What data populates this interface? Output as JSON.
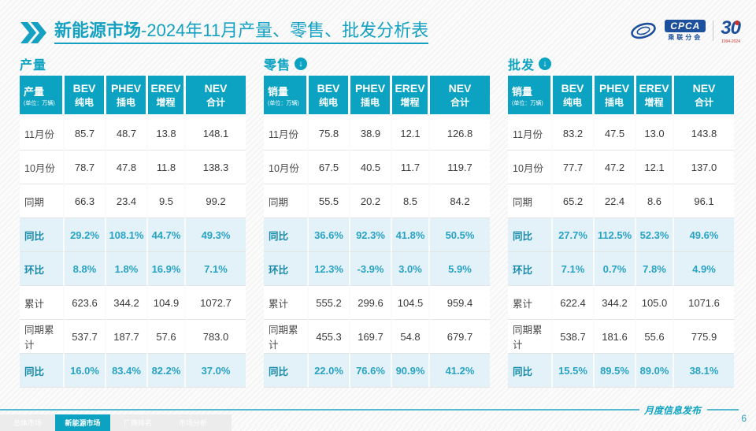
{
  "page_title": {
    "bold": "新能源市场",
    "rest": "-2024年11月产量、零售、批发分析表"
  },
  "header_logos": {
    "cpca_acronym": "CPCA",
    "cpca_name": "乘联分会",
    "anniversary_number": "30",
    "anniversary_years": "1994-2024"
  },
  "icons": {
    "down_arrow": "↓"
  },
  "watermark_text": "CPCA",
  "colors": {
    "accent": "#0CA2C1",
    "highlight_row_bg": "#E3F1F8",
    "logo_navy": "#1C4F9C",
    "logo_red": "#C9342C",
    "footer_line": "#56B8D1"
  },
  "chart_data": [
    {
      "type": "table",
      "section_label": "产量",
      "has_down_arrow": false,
      "corner_label": "产量",
      "corner_unit": "(单位：万辆)",
      "columns": [
        {
          "l1": "BEV",
          "l2": "纯电"
        },
        {
          "l1": "PHEV",
          "l2": "插电"
        },
        {
          "l1": "EREV",
          "l2": "增程"
        },
        {
          "l1": "NEV",
          "l2": "合计"
        }
      ],
      "rows": [
        {
          "label": "11月份",
          "values": [
            "85.7",
            "48.7",
            "13.8",
            "148.1"
          ],
          "highlight": false
        },
        {
          "label": "10月份",
          "values": [
            "78.7",
            "47.8",
            "11.8",
            "138.3"
          ],
          "highlight": false
        },
        {
          "label": "同期",
          "values": [
            "66.3",
            "23.4",
            "9.5",
            "99.2"
          ],
          "highlight": false
        },
        {
          "label": "同比",
          "values": [
            "29.2%",
            "108.1%",
            "44.7%",
            "49.3%"
          ],
          "highlight": true
        },
        {
          "label": "环比",
          "values": [
            "8.8%",
            "1.8%",
            "16.9%",
            "7.1%"
          ],
          "highlight": true
        },
        {
          "label": "累计",
          "values": [
            "623.6",
            "344.2",
            "104.9",
            "1072.7"
          ],
          "highlight": false
        },
        {
          "label": "同期累计",
          "values": [
            "537.7",
            "187.7",
            "57.6",
            "783.0"
          ],
          "highlight": false
        },
        {
          "label": "同比",
          "values": [
            "16.0%",
            "83.4%",
            "82.2%",
            "37.0%"
          ],
          "highlight": true
        }
      ]
    },
    {
      "type": "table",
      "section_label": "零售",
      "has_down_arrow": true,
      "corner_label": "销量",
      "corner_unit": "(单位：万辆)",
      "columns": [
        {
          "l1": "BEV",
          "l2": "纯电"
        },
        {
          "l1": "PHEV",
          "l2": "插电"
        },
        {
          "l1": "EREV",
          "l2": "增程"
        },
        {
          "l1": "NEV",
          "l2": "合计"
        }
      ],
      "rows": [
        {
          "label": "11月份",
          "values": [
            "75.8",
            "38.9",
            "12.1",
            "126.8"
          ],
          "highlight": false
        },
        {
          "label": "10月份",
          "values": [
            "67.5",
            "40.5",
            "11.7",
            "119.7"
          ],
          "highlight": false
        },
        {
          "label": "同期",
          "values": [
            "55.5",
            "20.2",
            "8.5",
            "84.2"
          ],
          "highlight": false
        },
        {
          "label": "同比",
          "values": [
            "36.6%",
            "92.3%",
            "41.8%",
            "50.5%"
          ],
          "highlight": true
        },
        {
          "label": "环比",
          "values": [
            "12.3%",
            "-3.9%",
            "3.0%",
            "5.9%"
          ],
          "highlight": true
        },
        {
          "label": "累计",
          "values": [
            "555.2",
            "299.6",
            "104.5",
            "959.4"
          ],
          "highlight": false
        },
        {
          "label": "同期累计",
          "values": [
            "455.3",
            "169.7",
            "54.8",
            "679.7"
          ],
          "highlight": false
        },
        {
          "label": "同比",
          "values": [
            "22.0%",
            "76.6%",
            "90.9%",
            "41.2%"
          ],
          "highlight": true
        }
      ]
    },
    {
      "type": "table",
      "section_label": "批发",
      "has_down_arrow": true,
      "corner_label": "销量",
      "corner_unit": "(单位：万辆)",
      "columns": [
        {
          "l1": "BEV",
          "l2": "纯电"
        },
        {
          "l1": "PHEV",
          "l2": "插电"
        },
        {
          "l1": "EREV",
          "l2": "增程"
        },
        {
          "l1": "NEV",
          "l2": "合计"
        }
      ],
      "rows": [
        {
          "label": "11月份",
          "values": [
            "83.2",
            "47.5",
            "13.0",
            "143.8"
          ],
          "highlight": false
        },
        {
          "label": "10月份",
          "values": [
            "77.7",
            "47.2",
            "12.1",
            "137.0"
          ],
          "highlight": false
        },
        {
          "label": "同期",
          "values": [
            "65.2",
            "22.4",
            "8.6",
            "96.1"
          ],
          "highlight": false
        },
        {
          "label": "同比",
          "values": [
            "27.7%",
            "112.5%",
            "52.3%",
            "49.6%"
          ],
          "highlight": true
        },
        {
          "label": "环比",
          "values": [
            "7.1%",
            "0.7%",
            "7.8%",
            "4.9%"
          ],
          "highlight": true
        },
        {
          "label": "累计",
          "values": [
            "622.4",
            "344.2",
            "105.0",
            "1071.6"
          ],
          "highlight": false
        },
        {
          "label": "同期累计",
          "values": [
            "538.7",
            "181.6",
            "55.6",
            "775.9"
          ],
          "highlight": false
        },
        {
          "label": "同比",
          "values": [
            "15.5%",
            "89.5%",
            "89.0%",
            "38.1%"
          ],
          "highlight": true
        }
      ]
    }
  ],
  "footer": {
    "caption": "月度信息发布",
    "page_number": "6",
    "tabs": [
      {
        "label": "总体市场",
        "active": false
      },
      {
        "label": "新能源市场",
        "active": true
      },
      {
        "label": "厂商排名",
        "active": false
      },
      {
        "label": "市场分析",
        "active": false
      }
    ]
  }
}
